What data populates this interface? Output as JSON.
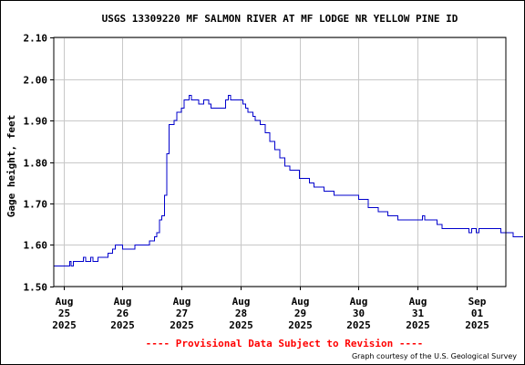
{
  "chart_data": {
    "type": "line",
    "title": "USGS 13309220 MF SALMON RIVER AT MF LODGE NR YELLOW PINE ID",
    "ylabel": "Gage height, feet",
    "xlabel": "",
    "ylim": [
      1.5,
      2.1
    ],
    "yticks": [
      {
        "value": 1.5,
        "label": "1.50"
      },
      {
        "value": 1.6,
        "label": "1.60"
      },
      {
        "value": 1.7,
        "label": "1.70"
      },
      {
        "value": 1.8,
        "label": "1.80"
      },
      {
        "value": 1.9,
        "label": "1.90"
      },
      {
        "value": 2.0,
        "label": "2.00"
      },
      {
        "value": 2.1,
        "label": "2.10"
      }
    ],
    "xlim": [
      "2025-08-24T20:00",
      "2025-09-01T12:00"
    ],
    "xticks": [
      {
        "x": "2025-08-25T00:00",
        "lines": [
          "Aug",
          "25",
          "2025"
        ]
      },
      {
        "x": "2025-08-26T00:00",
        "lines": [
          "Aug",
          "26",
          "2025"
        ]
      },
      {
        "x": "2025-08-27T00:00",
        "lines": [
          "Aug",
          "27",
          "2025"
        ]
      },
      {
        "x": "2025-08-28T00:00",
        "lines": [
          "Aug",
          "28",
          "2025"
        ]
      },
      {
        "x": "2025-08-29T00:00",
        "lines": [
          "Aug",
          "29",
          "2025"
        ]
      },
      {
        "x": "2025-08-30T00:00",
        "lines": [
          "Aug",
          "30",
          "2025"
        ]
      },
      {
        "x": "2025-08-31T00:00",
        "lines": [
          "Aug",
          "31",
          "2025"
        ]
      },
      {
        "x": "2025-09-01T00:00",
        "lines": [
          "Sep",
          "01",
          "2025"
        ]
      }
    ],
    "grid": true,
    "series": [
      {
        "color": "#0000cc",
        "points": [
          [
            "2025-08-24T20:00",
            1.55
          ],
          [
            "2025-08-25T02:00",
            1.55
          ],
          [
            "2025-08-25T02:30",
            1.56
          ],
          [
            "2025-08-25T03:00",
            1.55
          ],
          [
            "2025-08-25T04:00",
            1.56
          ],
          [
            "2025-08-25T06:00",
            1.56
          ],
          [
            "2025-08-25T08:00",
            1.57
          ],
          [
            "2025-08-25T09:00",
            1.56
          ],
          [
            "2025-08-25T11:00",
            1.57
          ],
          [
            "2025-08-25T12:00",
            1.56
          ],
          [
            "2025-08-25T14:00",
            1.57
          ],
          [
            "2025-08-25T16:00",
            1.57
          ],
          [
            "2025-08-25T18:00",
            1.58
          ],
          [
            "2025-08-25T20:00",
            1.59
          ],
          [
            "2025-08-25T21:00",
            1.6
          ],
          [
            "2025-08-25T23:00",
            1.6
          ],
          [
            "2025-08-26T00:00",
            1.59
          ],
          [
            "2025-08-26T04:00",
            1.59
          ],
          [
            "2025-08-26T05:00",
            1.6
          ],
          [
            "2025-08-26T10:00",
            1.6
          ],
          [
            "2025-08-26T11:00",
            1.61
          ],
          [
            "2025-08-26T13:00",
            1.62
          ],
          [
            "2025-08-26T14:00",
            1.63
          ],
          [
            "2025-08-26T15:00",
            1.66
          ],
          [
            "2025-08-26T16:00",
            1.67
          ],
          [
            "2025-08-26T17:00",
            1.72
          ],
          [
            "2025-08-26T18:00",
            1.82
          ],
          [
            "2025-08-26T19:00",
            1.89
          ],
          [
            "2025-08-26T21:00",
            1.9
          ],
          [
            "2025-08-26T22:00",
            1.92
          ],
          [
            "2025-08-27T00:00",
            1.93
          ],
          [
            "2025-08-27T01:00",
            1.95
          ],
          [
            "2025-08-27T02:00",
            1.95
          ],
          [
            "2025-08-27T03:00",
            1.96
          ],
          [
            "2025-08-27T04:00",
            1.95
          ],
          [
            "2025-08-27T06:00",
            1.95
          ],
          [
            "2025-08-27T07:00",
            1.94
          ],
          [
            "2025-08-27T09:00",
            1.95
          ],
          [
            "2025-08-27T11:00",
            1.94
          ],
          [
            "2025-08-27T12:00",
            1.93
          ],
          [
            "2025-08-27T17:00",
            1.93
          ],
          [
            "2025-08-27T18:00",
            1.95
          ],
          [
            "2025-08-27T19:00",
            1.96
          ],
          [
            "2025-08-27T20:00",
            1.95
          ],
          [
            "2025-08-28T00:00",
            1.95
          ],
          [
            "2025-08-28T01:00",
            1.94
          ],
          [
            "2025-08-28T02:00",
            1.93
          ],
          [
            "2025-08-28T03:00",
            1.92
          ],
          [
            "2025-08-28T05:00",
            1.91
          ],
          [
            "2025-08-28T06:00",
            1.9
          ],
          [
            "2025-08-28T08:00",
            1.89
          ],
          [
            "2025-08-28T10:00",
            1.87
          ],
          [
            "2025-08-28T12:00",
            1.85
          ],
          [
            "2025-08-28T14:00",
            1.83
          ],
          [
            "2025-08-28T16:00",
            1.81
          ],
          [
            "2025-08-28T18:00",
            1.79
          ],
          [
            "2025-08-28T20:00",
            1.78
          ],
          [
            "2025-08-29T00:00",
            1.76
          ],
          [
            "2025-08-29T04:00",
            1.75
          ],
          [
            "2025-08-29T06:00",
            1.74
          ],
          [
            "2025-08-29T10:00",
            1.73
          ],
          [
            "2025-08-29T14:00",
            1.72
          ],
          [
            "2025-08-29T20:00",
            1.72
          ],
          [
            "2025-08-30T00:00",
            1.71
          ],
          [
            "2025-08-30T04:00",
            1.69
          ],
          [
            "2025-08-30T08:00",
            1.68
          ],
          [
            "2025-08-30T12:00",
            1.67
          ],
          [
            "2025-08-30T16:00",
            1.66
          ],
          [
            "2025-08-31T00:00",
            1.66
          ],
          [
            "2025-08-31T02:00",
            1.67
          ],
          [
            "2025-08-31T03:00",
            1.66
          ],
          [
            "2025-08-31T06:00",
            1.66
          ],
          [
            "2025-08-31T08:00",
            1.65
          ],
          [
            "2025-08-31T10:00",
            1.64
          ],
          [
            "2025-08-31T20:00",
            1.64
          ],
          [
            "2025-08-31T21:00",
            1.63
          ],
          [
            "2025-08-31T22:00",
            1.64
          ],
          [
            "2025-09-01T00:00",
            1.63
          ],
          [
            "2025-09-01T01:00",
            1.64
          ],
          [
            "2025-09-01T08:00",
            1.64
          ],
          [
            "2025-09-01T10:00",
            1.63
          ],
          [
            "2025-09-01T14:00",
            1.63
          ],
          [
            "2025-09-01T15:00",
            1.62
          ],
          [
            "2025-09-01T19:00",
            1.62
          ]
        ]
      }
    ]
  },
  "footer": {
    "provisional": "---- Provisional Data Subject to Revision ----",
    "credit": "Graph courtesy of the U.S. Geological Survey"
  }
}
